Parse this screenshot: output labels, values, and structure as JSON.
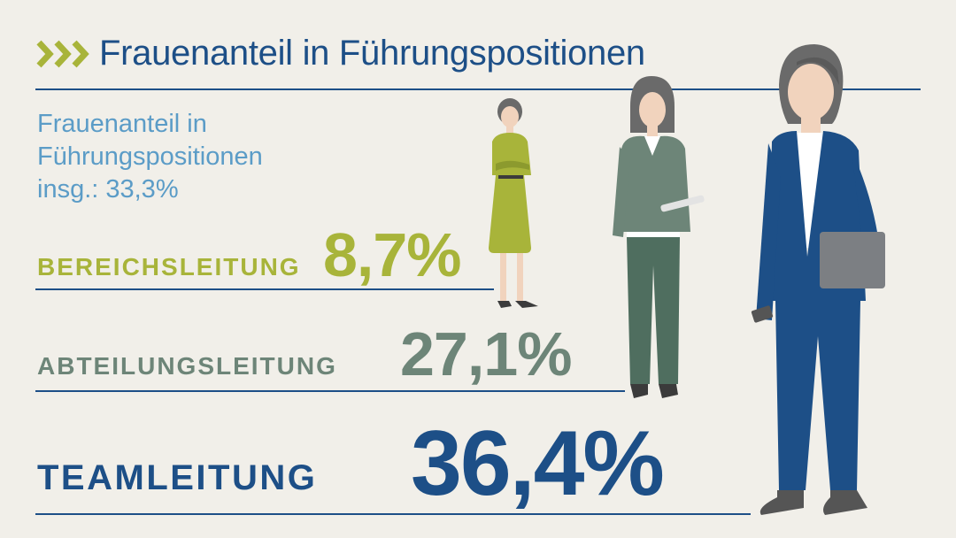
{
  "header": {
    "title": "Frauenanteil in Führungspositionen",
    "chevron_icon": "triple-chevron-right-icon"
  },
  "summary": {
    "lines": [
      "Frauenanteil in",
      "Führungspositionen",
      "insg.: 33,3%"
    ]
  },
  "levels": [
    {
      "label": "BEREICHSLEITUNG",
      "value": "8,7%",
      "share_percent": 8.7,
      "color": "#a8b43a"
    },
    {
      "label": "ABTEILUNGSLEITUNG",
      "value": "27,1%",
      "share_percent": 27.1,
      "color": "#6d8578"
    },
    {
      "label": "TEAMLEITUNG",
      "value": "36,4%",
      "share_percent": 36.4,
      "color": "#1d4f87"
    }
  ],
  "colors": {
    "background": "#f1efe9",
    "title_blue": "#1d4f87",
    "subtitle_blue": "#5b9cc7",
    "chevron_green": "#a8b43a"
  }
}
